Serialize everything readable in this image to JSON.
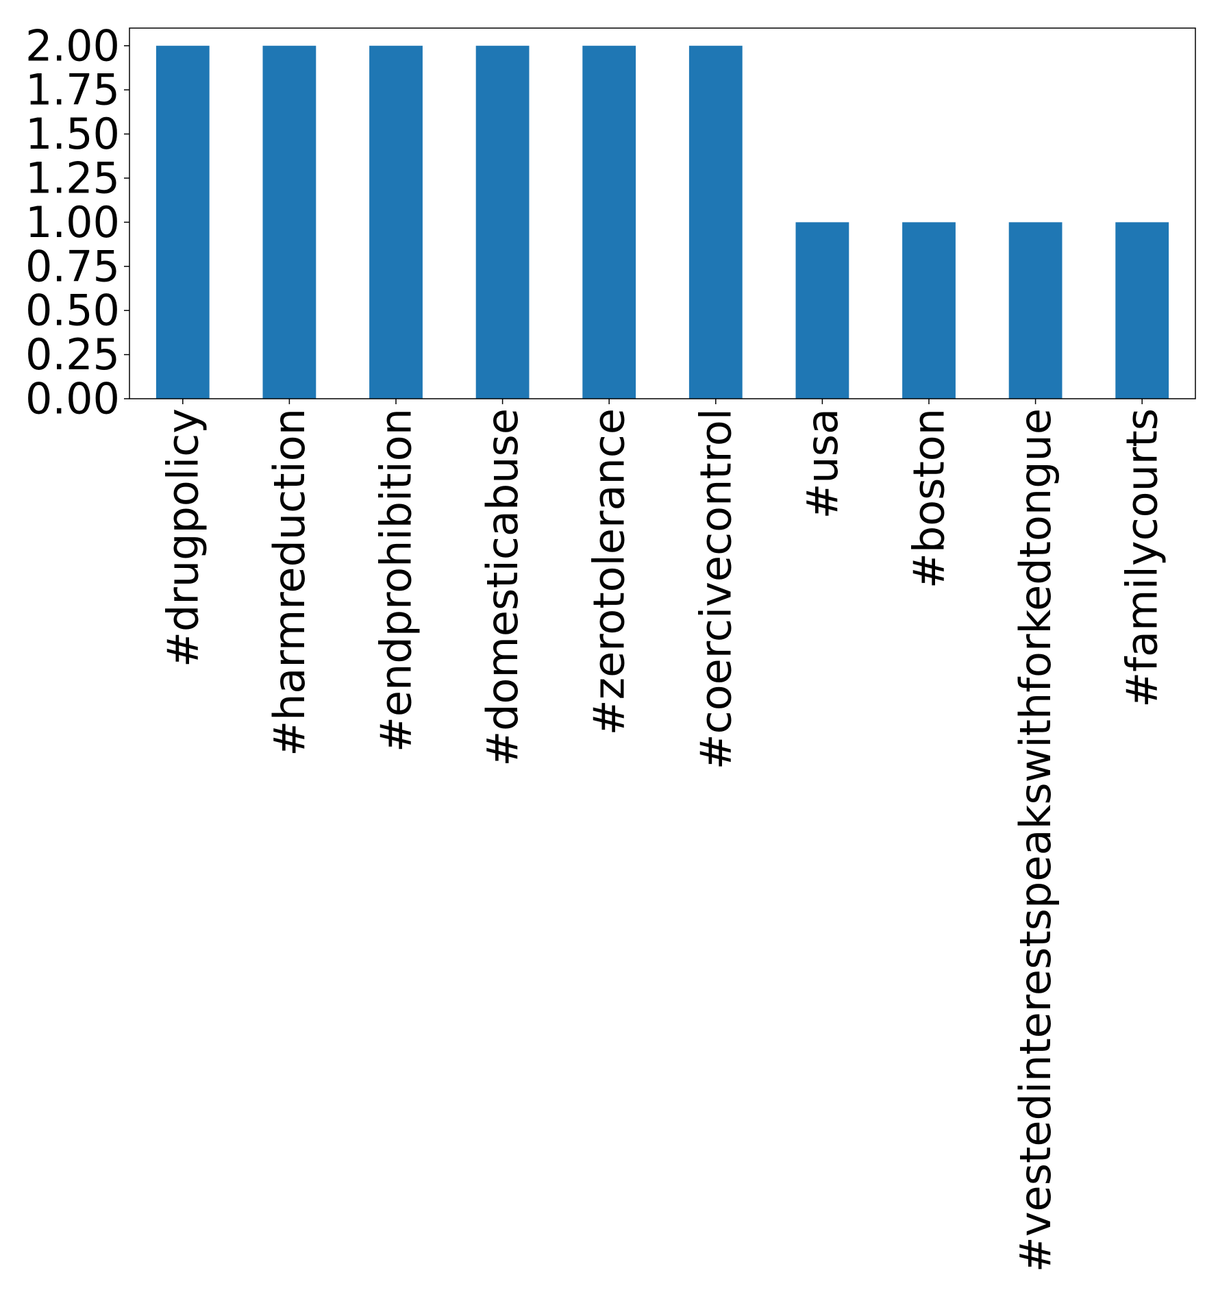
{
  "chart_data": {
    "type": "bar",
    "title": "",
    "xlabel": "",
    "ylabel": "",
    "categories": [
      "#drugpolicy",
      "#harmreduction",
      "#endprohibition",
      "#domesticabuse",
      "#zerotolerance",
      "#coercivecontrol",
      "#usa",
      "#boston",
      "#vestedinterestspeakswithforkedtongue",
      "#familycourts"
    ],
    "values": [
      2,
      2,
      2,
      2,
      2,
      2,
      1,
      1,
      1,
      1
    ],
    "ylim": [
      0,
      2.1
    ],
    "yticks": [
      0.0,
      0.25,
      0.5,
      0.75,
      1.0,
      1.25,
      1.5,
      1.75,
      2.0
    ],
    "ytick_labels": [
      "0.00",
      "0.25",
      "0.50",
      "0.75",
      "1.00",
      "1.25",
      "1.50",
      "1.75",
      "2.00"
    ],
    "bar_color": "#1f77b4",
    "grid": false,
    "legend": "none"
  }
}
